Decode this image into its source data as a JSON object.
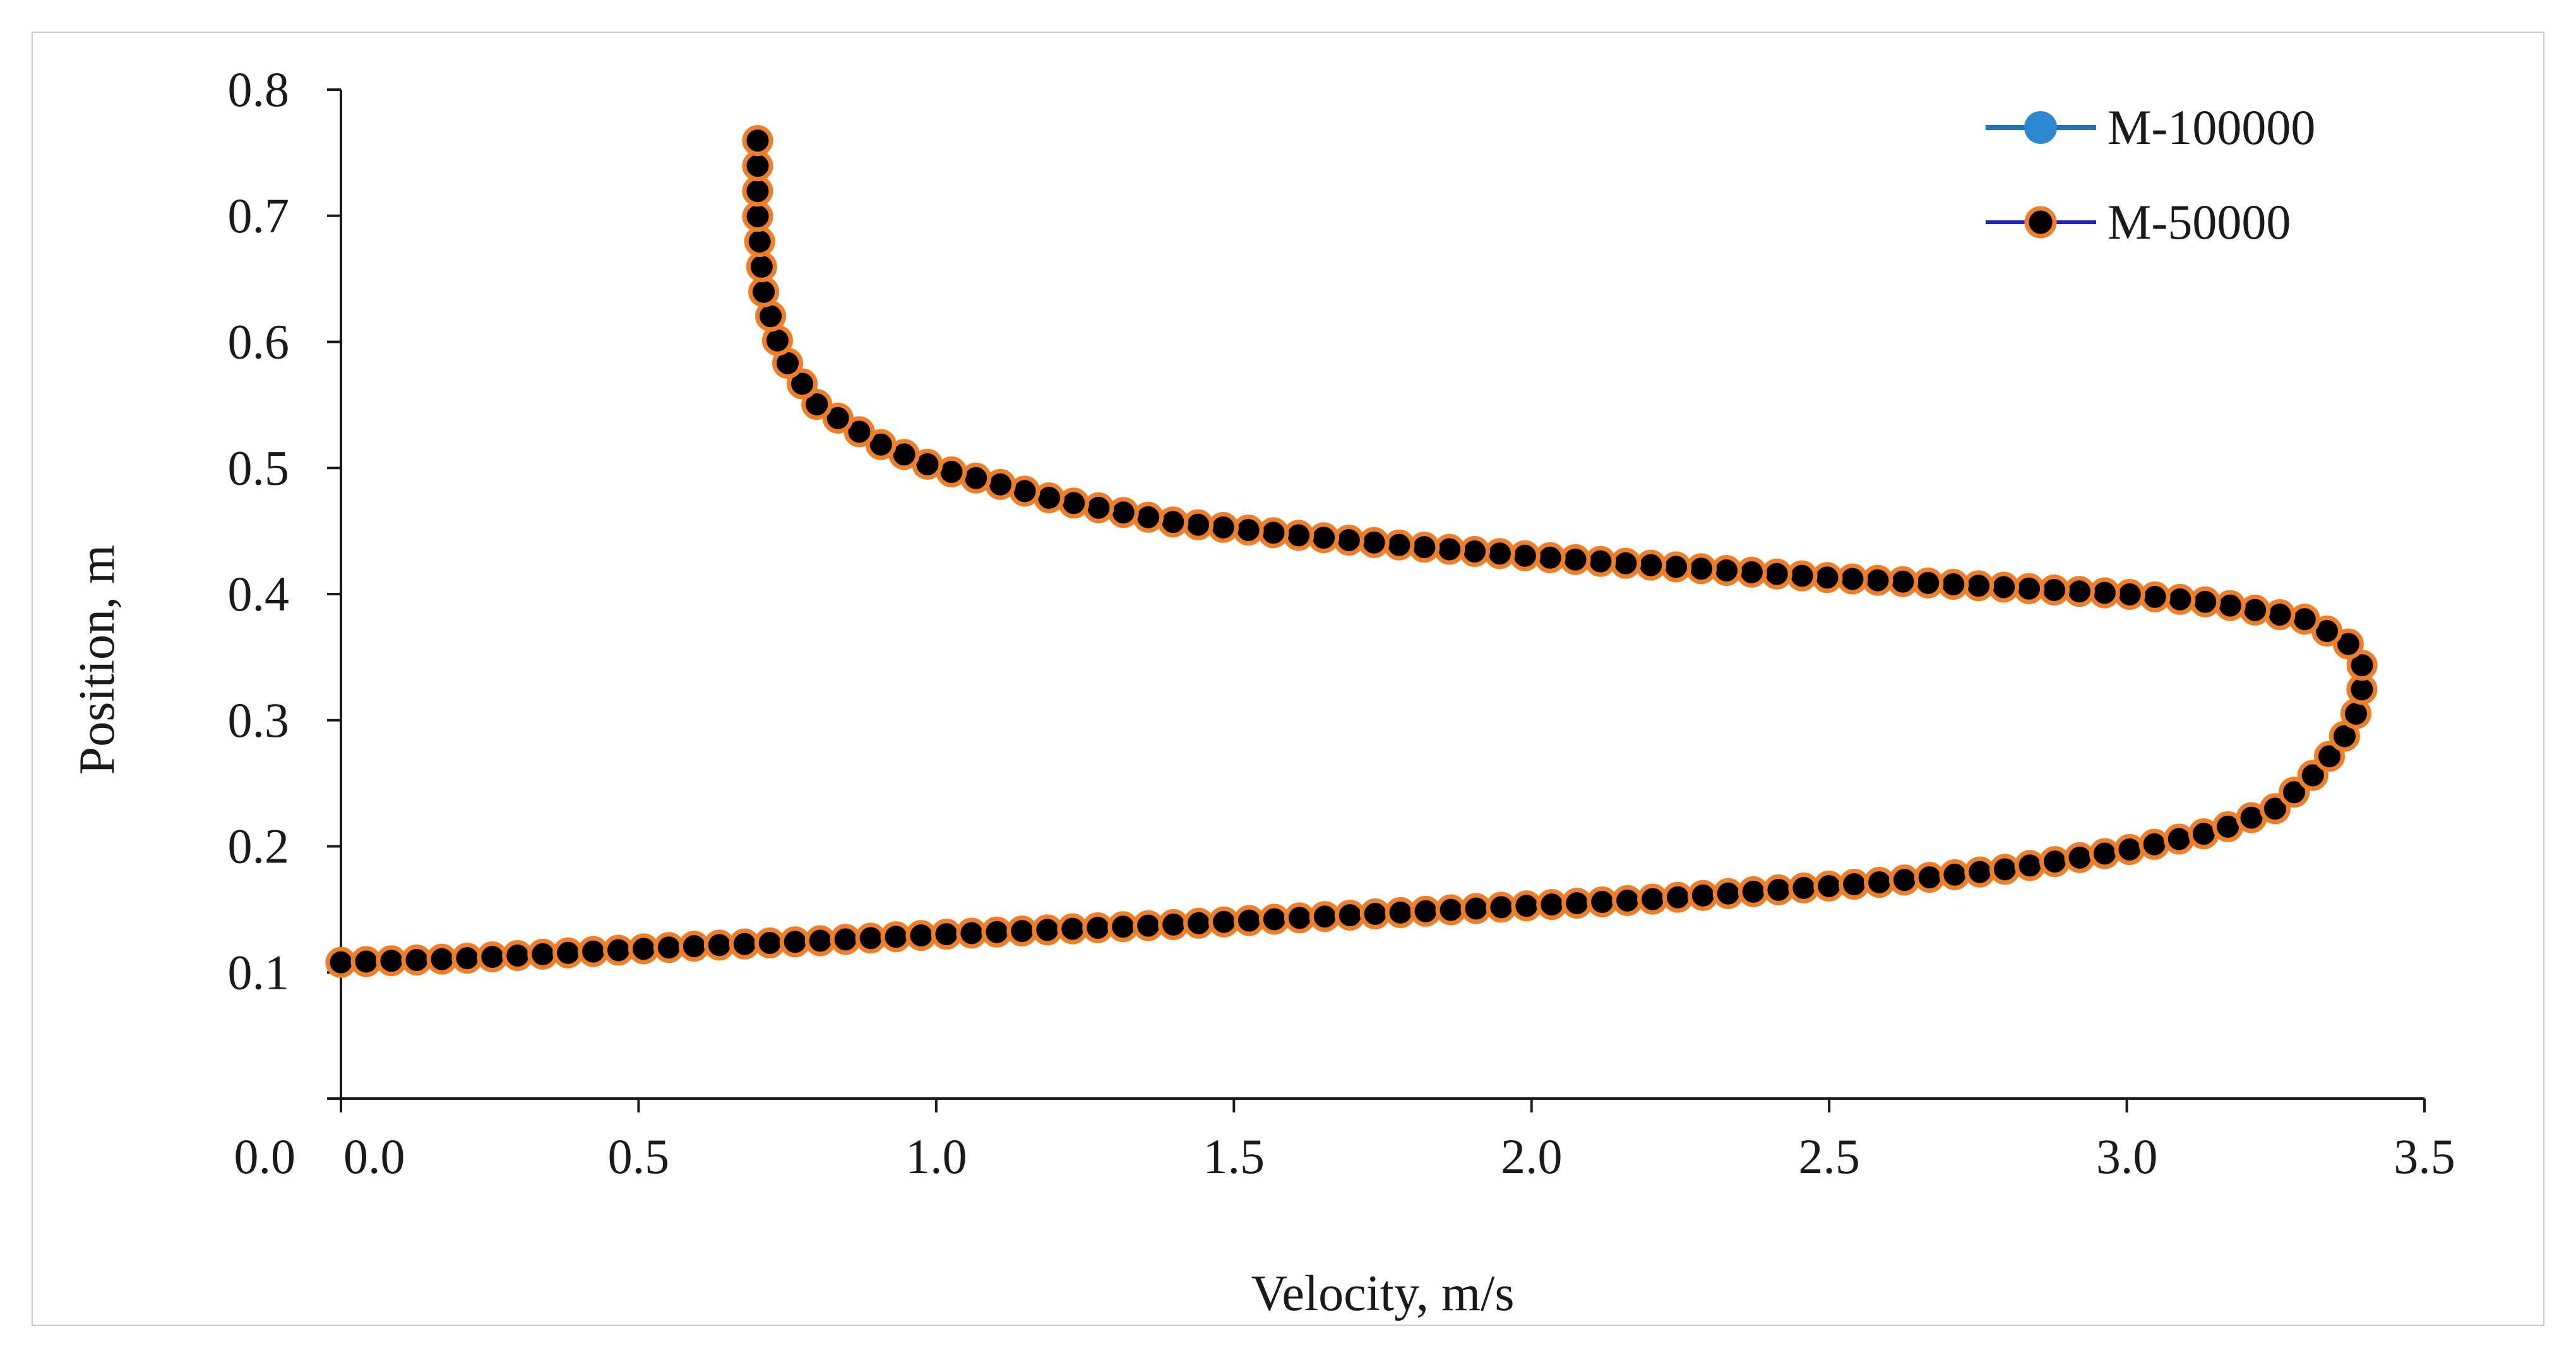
{
  "chart_data": {
    "type": "line",
    "title": "",
    "xlabel": "Velocity, m/s",
    "ylabel": "Position, m",
    "xlim": [
      0,
      3.5
    ],
    "ylim": [
      0,
      0.8
    ],
    "xticks": [
      "0.0",
      "0.5",
      "1.0",
      "1.5",
      "2.0",
      "2.5",
      "3.0",
      "3.5"
    ],
    "yticks": [
      "0.0",
      "0.1",
      "0.2",
      "0.3",
      "0.4",
      "0.5",
      "0.6",
      "0.7",
      "0.8"
    ],
    "grid": false,
    "legend_position": "top-right",
    "series": [
      {
        "name": "M-100000",
        "line_color": "#1e73be",
        "marker_fill": "#2e86d0",
        "marker_stroke": "#2e86d0",
        "points": [
          [
            0.0,
            0.108
          ],
          [
            0.2,
            0.111
          ],
          [
            0.4,
            0.116
          ],
          [
            0.6,
            0.121
          ],
          [
            0.8,
            0.125
          ],
          [
            1.0,
            0.13
          ],
          [
            1.2,
            0.134
          ],
          [
            1.4,
            0.138
          ],
          [
            1.6,
            0.143
          ],
          [
            1.8,
            0.148
          ],
          [
            2.0,
            0.153
          ],
          [
            2.2,
            0.158
          ],
          [
            2.4,
            0.165
          ],
          [
            2.6,
            0.172
          ],
          [
            2.8,
            0.182
          ],
          [
            3.0,
            0.197
          ],
          [
            3.15,
            0.212
          ],
          [
            3.25,
            0.23
          ],
          [
            3.31,
            0.255
          ],
          [
            3.36,
            0.282
          ],
          [
            3.39,
            0.31
          ],
          [
            3.4,
            0.34
          ],
          [
            3.37,
            0.362
          ],
          [
            3.3,
            0.38
          ],
          [
            3.15,
            0.393
          ],
          [
            3.0,
            0.4
          ],
          [
            2.7,
            0.408
          ],
          [
            2.5,
            0.413
          ],
          [
            2.2,
            0.423
          ],
          [
            2.0,
            0.43
          ],
          [
            1.8,
            0.438
          ],
          [
            1.6,
            0.447
          ],
          [
            1.4,
            0.457
          ],
          [
            1.2,
            0.475
          ],
          [
            1.1,
            0.488
          ],
          [
            1.0,
            0.5
          ],
          [
            0.9,
            0.52
          ],
          [
            0.8,
            0.55
          ],
          [
            0.74,
            0.59
          ],
          [
            0.71,
            0.64
          ],
          [
            0.7,
            0.7
          ],
          [
            0.7,
            0.77
          ]
        ]
      },
      {
        "name": "M-50000",
        "line_color": "#1f1fd0",
        "marker_fill": "#000000",
        "marker_stroke": "#f07e26",
        "points": [
          [
            0.0,
            0.108
          ],
          [
            0.2,
            0.111
          ],
          [
            0.4,
            0.116
          ],
          [
            0.6,
            0.121
          ],
          [
            0.8,
            0.125
          ],
          [
            1.0,
            0.13
          ],
          [
            1.2,
            0.134
          ],
          [
            1.4,
            0.138
          ],
          [
            1.6,
            0.143
          ],
          [
            1.8,
            0.148
          ],
          [
            2.0,
            0.153
          ],
          [
            2.2,
            0.158
          ],
          [
            2.4,
            0.165
          ],
          [
            2.6,
            0.172
          ],
          [
            2.8,
            0.182
          ],
          [
            3.0,
            0.197
          ],
          [
            3.15,
            0.212
          ],
          [
            3.25,
            0.23
          ],
          [
            3.31,
            0.255
          ],
          [
            3.36,
            0.282
          ],
          [
            3.39,
            0.31
          ],
          [
            3.4,
            0.34
          ],
          [
            3.37,
            0.362
          ],
          [
            3.3,
            0.38
          ],
          [
            3.15,
            0.393
          ],
          [
            3.0,
            0.4
          ],
          [
            2.7,
            0.408
          ],
          [
            2.5,
            0.413
          ],
          [
            2.2,
            0.423
          ],
          [
            2.0,
            0.43
          ],
          [
            1.8,
            0.438
          ],
          [
            1.6,
            0.447
          ],
          [
            1.4,
            0.457
          ],
          [
            1.2,
            0.475
          ],
          [
            1.1,
            0.488
          ],
          [
            1.0,
            0.5
          ],
          [
            0.9,
            0.52
          ],
          [
            0.8,
            0.55
          ],
          [
            0.74,
            0.59
          ],
          [
            0.71,
            0.64
          ],
          [
            0.7,
            0.7
          ],
          [
            0.7,
            0.77
          ]
        ]
      }
    ]
  }
}
